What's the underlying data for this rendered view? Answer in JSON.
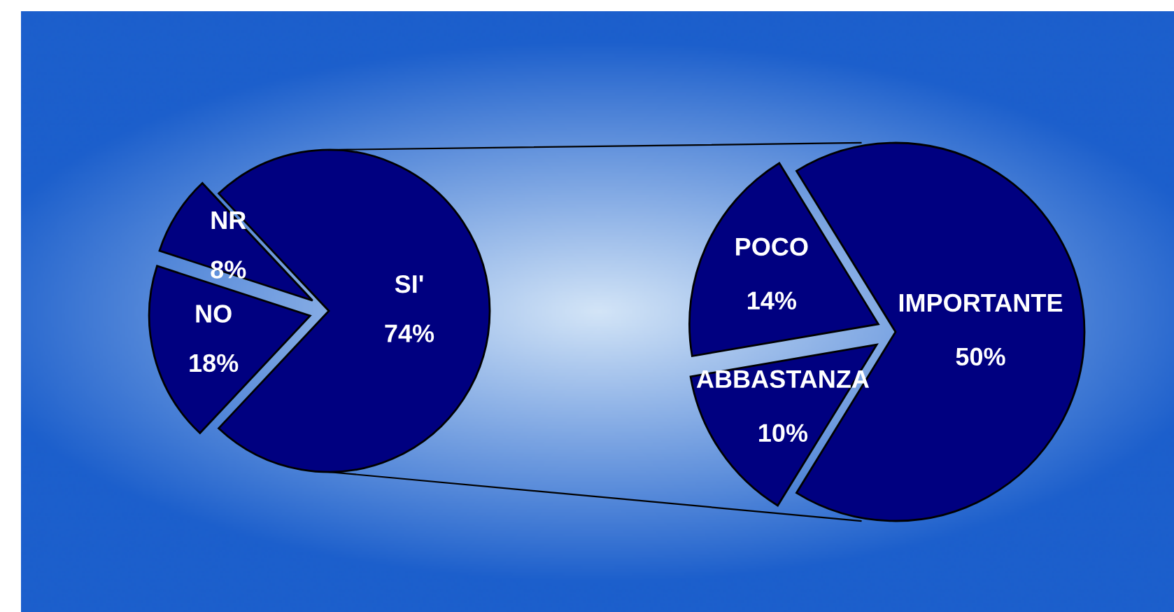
{
  "chart_data": [
    {
      "type": "pie",
      "categories": [
        "SI'",
        "NR",
        "NO"
      ],
      "values": [
        74,
        8,
        18
      ],
      "value_labels": [
        "74%",
        "8%",
        "18%"
      ],
      "colors": [
        "#000080",
        "#000080",
        "#000080"
      ]
    },
    {
      "type": "pie",
      "categories": [
        "IMPORTANTE",
        "POCO",
        "ABBASTANZA"
      ],
      "values": [
        50,
        14,
        10
      ],
      "value_labels": [
        "50%",
        "14%",
        "10%"
      ],
      "colors": [
        "#000080",
        "#000080",
        "#000080"
      ]
    }
  ]
}
